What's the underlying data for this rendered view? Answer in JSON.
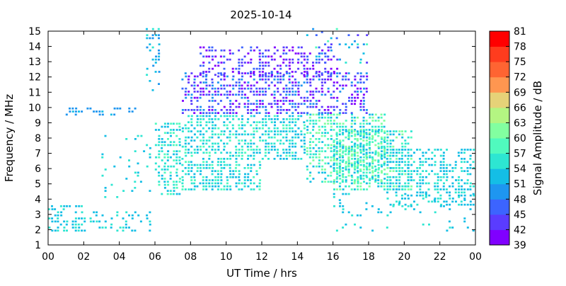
{
  "chart_data": {
    "type": "heatmap",
    "title": "2025-10-14",
    "xlabel": "UT Time / hrs",
    "ylabel": "Frequency / MHz",
    "colorbar_label": "Signal Amplitude / dB",
    "xlim": [
      0,
      24
    ],
    "ylim": [
      1,
      15
    ],
    "x_ticks": [
      "00",
      "02",
      "04",
      "06",
      "08",
      "10",
      "12",
      "14",
      "16",
      "18",
      "20",
      "22",
      "00"
    ],
    "y_ticks": [
      "1",
      "2",
      "3",
      "4",
      "5",
      "6",
      "7",
      "8",
      "9",
      "10",
      "11",
      "12",
      "13",
      "14",
      "15"
    ],
    "colorbar_ticks": [
      "39",
      "42",
      "45",
      "48",
      "51",
      "54",
      "57",
      "60",
      "63",
      "66",
      "69",
      "72",
      "75",
      "78",
      "81"
    ],
    "colorbar_colors": [
      "#8000ff",
      "#5a3cff",
      "#3c64ff",
      "#1e96f0",
      "#14bee6",
      "#2de6d2",
      "#50fabe",
      "#82ffa0",
      "#b4f582",
      "#e6d278",
      "#ff9650",
      "#ff6432",
      "#ff3c1e",
      "#ff0000"
    ],
    "x_step_hours": 0.1667,
    "y_step_mhz": 0.2,
    "bands": [
      {
        "x": [
          0.0,
          2.0
        ],
        "y": [
          1.8,
          3.6
        ],
        "density": 0.45,
        "amplitude": [
          51,
          56
        ]
      },
      {
        "x": [
          2.0,
          6.0
        ],
        "y": [
          1.8,
          3.2
        ],
        "density": 0.3,
        "amplitude": [
          51,
          56
        ]
      },
      {
        "x": [
          3.0,
          5.8
        ],
        "y": [
          4.0,
          8.2
        ],
        "density": 0.08,
        "amplitude": [
          51,
          57
        ]
      },
      {
        "x": [
          6.0,
          7.5
        ],
        "y": [
          4.2,
          9.0
        ],
        "density": 0.55,
        "amplitude": [
          51,
          60
        ]
      },
      {
        "x": [
          7.5,
          12.0
        ],
        "y": [
          4.5,
          9.4
        ],
        "density": 0.6,
        "amplitude": [
          51,
          58
        ]
      },
      {
        "x": [
          12.0,
          14.5
        ],
        "y": [
          6.5,
          9.4
        ],
        "density": 0.6,
        "amplitude": [
          51,
          58
        ]
      },
      {
        "x": [
          14.5,
          19.0
        ],
        "y": [
          5.0,
          9.4
        ],
        "density": 0.6,
        "amplitude": [
          51,
          63
        ]
      },
      {
        "x": [
          16.0,
          20.5
        ],
        "y": [
          4.5,
          8.5
        ],
        "density": 0.55,
        "amplitude": [
          51,
          63
        ]
      },
      {
        "x": [
          19.0,
          24.0
        ],
        "y": [
          3.5,
          7.2
        ],
        "density": 0.45,
        "amplitude": [
          51,
          57
        ]
      },
      {
        "x": [
          16.0,
          24.0
        ],
        "y": [
          1.8,
          4.4
        ],
        "density": 0.12,
        "amplitude": [
          51,
          55
        ]
      },
      {
        "x": [
          7.5,
          18.0
        ],
        "y": [
          9.5,
          12.2
        ],
        "density": 0.55,
        "amplitude": [
          39,
          51
        ]
      },
      {
        "x": [
          8.5,
          16.5
        ],
        "y": [
          12.0,
          13.9
        ],
        "density": 0.4,
        "amplitude": [
          39,
          48
        ]
      },
      {
        "x": [
          1.0,
          5.0
        ],
        "y": [
          9.4,
          9.8
        ],
        "density": 0.35,
        "amplitude": [
          48,
          52
        ]
      },
      {
        "x": [
          5.5,
          6.3
        ],
        "y": [
          11.0,
          15.0
        ],
        "density": 0.25,
        "amplitude": [
          48,
          56
        ]
      },
      {
        "x": [
          14.5,
          18.0
        ],
        "y": [
          12.8,
          15.0
        ],
        "density": 0.15,
        "amplitude": [
          42,
          58
        ]
      }
    ]
  }
}
